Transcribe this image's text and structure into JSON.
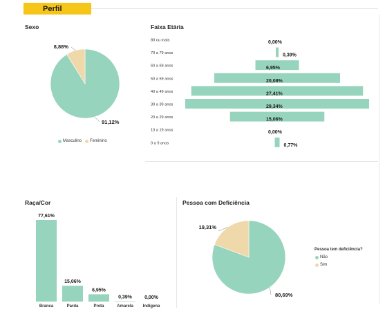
{
  "header": {
    "tab_label": "Perfil"
  },
  "colors": {
    "accent": "#F5C518",
    "teal": "#97D4BD",
    "beige": "#EFD9AA"
  },
  "chart_data": [
    {
      "id": "sexo",
      "type": "pie",
      "title": "Sexo",
      "slices": [
        {
          "name": "Masculino",
          "value": 91.12,
          "label": "91,12%",
          "color": "#97D4BD"
        },
        {
          "name": "Feminino",
          "value": 8.88,
          "label": "8,88%",
          "color": "#EFD9AA"
        }
      ],
      "legend": [
        "Masculino",
        "Feminino"
      ],
      "legend_position": "bottom"
    },
    {
      "id": "faixa",
      "type": "bar",
      "orientation": "horizontal-centered",
      "title": "Faixa Etária",
      "categories": [
        "80 ou mais",
        "70 a 79 anos",
        "60 a 69 anos",
        "50 a 59 anos",
        "40 a 49 anos",
        "30 a 39 anos",
        "20 a 29 anos",
        "10 a 19 anos",
        "0 a 9 anos"
      ],
      "values": [
        0.0,
        0.39,
        6.95,
        20.08,
        27.41,
        29.34,
        15.06,
        0.0,
        0.77
      ],
      "labels": [
        "0,00%",
        "0,39%",
        "6,95%",
        "20,08%",
        "27,41%",
        "29,34%",
        "15,06%",
        "0,00%",
        "0,77%"
      ]
    },
    {
      "id": "raca",
      "type": "bar",
      "title": "Raça/Cor",
      "categories": [
        "Branca",
        "Parda",
        "Preta",
        "Amarela",
        "Indígena"
      ],
      "values": [
        77.61,
        15.06,
        6.95,
        0.39,
        0.0
      ],
      "labels": [
        "77,61%",
        "15,06%",
        "6,95%",
        "0,39%",
        "0,00%"
      ]
    },
    {
      "id": "deficiencia",
      "type": "pie",
      "title": "Pessoa com Deficiência",
      "slices": [
        {
          "name": "Não",
          "value": 80.69,
          "label": "80,69%",
          "color": "#97D4BD"
        },
        {
          "name": "Sim",
          "value": 19.31,
          "label": "19,31%",
          "color": "#EFD9AA"
        }
      ],
      "legend_title": "Pessoa tem deficiência?",
      "legend": [
        "Não",
        "Sim"
      ],
      "legend_position": "right"
    }
  ]
}
